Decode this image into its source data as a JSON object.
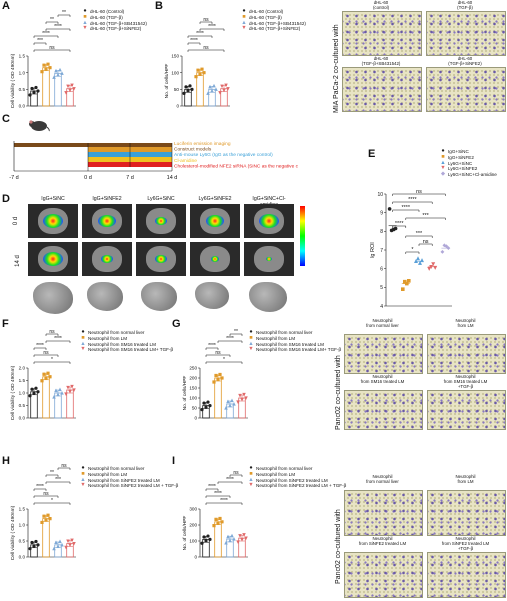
{
  "panels": {
    "A": {
      "label": "A",
      "ylabel": "Cell viability ( OD 490nm)",
      "yticks": [
        "0.0",
        "0.5",
        "1.0",
        "1.5"
      ],
      "ylim": [
        0,
        1.5
      ],
      "legend": [
        {
          "symbol": "●",
          "color": "#222222",
          "text": "dHL-60 (Control)"
        },
        {
          "symbol": "■",
          "color": "#e09a2a",
          "text": "dHL-60 (TGF-β)"
        },
        {
          "symbol": "▲",
          "color": "#7fa9d6",
          "text": "dHL-60 (TGF-β+SB431542)"
        },
        {
          "symbol": "▼",
          "color": "#e06a6a",
          "text": "dHL-60 (TGF-β+SiNFE2)"
        }
      ],
      "sig": [
        "ns",
        "***",
        "****",
        "****",
        "**",
        "**"
      ]
    },
    "B": {
      "label": "B",
      "ylabel": "No. of cells/HPF",
      "yticks": [
        "0",
        "50",
        "100",
        "150"
      ],
      "ylim": [
        0,
        150
      ],
      "legend": [
        {
          "symbol": "●",
          "color": "#222222",
          "text": "dHL-60 (Control)"
        },
        {
          "symbol": "■",
          "color": "#e09a2a",
          "text": "dHL-60 (TGF-β)"
        },
        {
          "symbol": "▲",
          "color": "#7fa9d6",
          "text": "dHL-60 (TGF-β+SB431542)"
        },
        {
          "symbol": "▼",
          "color": "#e06a6a",
          "text": "dHL-60 (TGF-β+SiNFE2)"
        }
      ],
      "sig": [
        "ns",
        "****",
        "****",
        "****",
        "ns"
      ],
      "micro": {
        "side_label": "MIA PaCa-2 co-cultured with",
        "captions": [
          "dHL-60\n(control)",
          "dHL-60\n(TGF-β)",
          "dHL-60\n(TGF-β+SB431542)",
          "dHL-60\n(TGF-β+SiNFE2)"
        ]
      }
    },
    "C": {
      "label": "C",
      "ticks": [
        "-7 d",
        "0 d",
        "7 d",
        "14 d"
      ],
      "lines": [
        {
          "text": "Luciferin emission imaging",
          "color": "#e09a2a"
        },
        {
          "text": "Construct models",
          "color": "#7a4a1a"
        },
        {
          "text": "Anti-mouse Ly6G (IgG as the negative control)",
          "color": "#3aa0d8"
        },
        {
          "text": "Cl-amidine",
          "color": "#f0c020"
        },
        {
          "text": "Cholesterol-modified NFE2 siRNA (SiNC as the negative control)",
          "color": "#e02020"
        }
      ]
    },
    "D": {
      "label": "D",
      "groups": [
        "IgG+SiNC",
        "IgG+SiNFE2",
        "Ly6G+SiNC",
        "Ly6G+SiNFE2",
        "IgG+SiNC+Cl-amidine"
      ],
      "rows": [
        "0 d",
        "14 d"
      ],
      "scale": [
        "x10^6"
      ]
    },
    "E": {
      "label": "E",
      "ylabel": "lg ROI",
      "yticks": [
        "4",
        "5",
        "6",
        "7",
        "8",
        "9",
        "10"
      ],
      "ylim": [
        4,
        10
      ],
      "legend": [
        {
          "symbol": "●",
          "color": "#222222",
          "text": "IgG+SiNC"
        },
        {
          "symbol": "■",
          "color": "#e09a2a",
          "text": "IgG+SiNFE2"
        },
        {
          "symbol": "▲",
          "color": "#5aa0d8",
          "text": "Ly6G+SiNC"
        },
        {
          "symbol": "▼",
          "color": "#e06a6a",
          "text": "Ly6G+SiNFE2"
        },
        {
          "symbol": "◆",
          "color": "#b0a8d8",
          "text": "Ly6G+SiNC+Cl-amidine"
        }
      ],
      "sig": [
        "ns",
        "****",
        "****",
        "***",
        "****",
        "***",
        "*",
        "ns"
      ]
    },
    "F": {
      "label": "F",
      "ylabel": "Cell viability ( OD 490nm)",
      "yticks": [
        "0.0",
        "0.5",
        "1.0",
        "1.5",
        "2.0"
      ],
      "ylim": [
        0,
        2.0
      ],
      "legend": [
        {
          "symbol": "●",
          "color": "#222222",
          "text": "Neutrophil from normal liver"
        },
        {
          "symbol": "■",
          "color": "#e09a2a",
          "text": "Neutrophil from LM"
        },
        {
          "symbol": "▲",
          "color": "#7fa9d6",
          "text": "Neutrophil from SM16 treated LM"
        },
        {
          "symbol": "▼",
          "color": "#e06a6a",
          "text": "Neutrophil from SM16 treated LM+ TGF-β"
        }
      ],
      "sig": [
        "*",
        "ns",
        "****",
        "****",
        "ns"
      ]
    },
    "G": {
      "label": "G",
      "ylabel": "No. of cells/HPF",
      "yticks": [
        "0",
        "50",
        "100",
        "150",
        "200",
        "250"
      ],
      "ylim": [
        0,
        250
      ],
      "legend": [
        {
          "symbol": "●",
          "color": "#222222",
          "text": "Neutrophil from normal liver"
        },
        {
          "symbol": "■",
          "color": "#e09a2a",
          "text": "Neutrophil from LM"
        },
        {
          "symbol": "▲",
          "color": "#7fa9d6",
          "text": "Neutrophil from SM16 treated LM"
        },
        {
          "symbol": "▼",
          "color": "#e06a6a",
          "text": "Neutrophil from SM16 treated LM+ TGF-β"
        }
      ],
      "sig": [
        "*",
        "ns",
        "****",
        "****",
        "**"
      ],
      "micro": {
        "side_label": "Panc02 co-cultured with",
        "captions": [
          "Neutrophil\nfrom normal liver",
          "Neutrophil\nfrom LM",
          "Neutrophil\nfrom SM16 treated LM",
          "Neutrophil\nfrom SM16 treated LM\n+TGF-β"
        ]
      }
    },
    "H": {
      "label": "H",
      "ylabel": "Cell viability ( OD 490nm)",
      "yticks": [
        "0.0",
        "0.5",
        "1.0",
        "1.5"
      ],
      "ylim": [
        0,
        1.5
      ],
      "legend": [
        {
          "symbol": "●",
          "color": "#222222",
          "text": "Neutrophil from normal liver"
        },
        {
          "symbol": "■",
          "color": "#e09a2a",
          "text": "Neutrophil from LM"
        },
        {
          "symbol": "▲",
          "color": "#7fa9d6",
          "text": "Neutrophil from SiNFE2 treated LM"
        },
        {
          "symbol": "▼",
          "color": "#e06a6a",
          "text": "Neutrophil from SiNFE2 treated LM + TGF-β"
        }
      ],
      "sig": [
        "*",
        "ns",
        "****",
        "***",
        "**",
        "ns"
      ]
    },
    "I": {
      "label": "I",
      "ylabel": "No. of cells/HPF",
      "yticks": [
        "0",
        "100",
        "200",
        "300"
      ],
      "ylim": [
        0,
        300
      ],
      "legend": [
        {
          "symbol": "●",
          "color": "#222222",
          "text": "Neutrophil from normal liver"
        },
        {
          "symbol": "■",
          "color": "#e09a2a",
          "text": "Neutrophil from LM"
        },
        {
          "symbol": "▲",
          "color": "#7fa9d6",
          "text": "Neutrophil from SiNFE2 treated LM"
        },
        {
          "symbol": "▼",
          "color": "#e06a6a",
          "text": "Neutrophil from SiNFE2 treated LM + TGF-β"
        }
      ],
      "sig": [
        "****",
        "****",
        "****",
        "****",
        "ns"
      ],
      "micro": {
        "side_label": "Panc02 co-cultured with",
        "captions": [
          "Neutrophil\nfrom normal liver",
          "Neutrophil\nfrom LM",
          "Neutrophil\nfrom SiNFE2 treated LM",
          "Neutrophil\nfrom SiNFE2 treated LM\n+TGF-β"
        ]
      }
    }
  },
  "chart_data": [
    {
      "panel": "A",
      "type": "bar",
      "categories": [
        "Control",
        "TGF-β",
        "TGF-β+SB431542",
        "TGF-β+SiNFE2"
      ],
      "values": [
        0.45,
        1.15,
        0.98,
        0.52
      ],
      "ylim": [
        0,
        1.5
      ]
    },
    {
      "panel": "B",
      "type": "bar",
      "categories": [
        "Control",
        "TGF-β",
        "TGF-β+SB431542",
        "TGF-β+SiNFE2"
      ],
      "values": [
        50,
        100,
        50,
        52
      ],
      "ylim": [
        0,
        150
      ]
    },
    {
      "panel": "E",
      "type": "scatter",
      "categories": [
        "IgG+SiNC",
        "IgG+SiNFE2",
        "Ly6G+SiNC",
        "Ly6G+SiNFE2",
        "Ly6G+SiNC+Cl-amidine"
      ],
      "values": [
        8.3,
        5.2,
        6.4,
        6.1,
        7.1
      ],
      "ylim": [
        4,
        10
      ]
    },
    {
      "panel": "F",
      "type": "bar",
      "categories": [
        "normal liver",
        "LM",
        "SM16 treated LM",
        "SM16 treated LM+TGF-β"
      ],
      "values": [
        1.05,
        1.65,
        1.0,
        1.12
      ],
      "ylim": [
        0,
        2.0
      ]
    },
    {
      "panel": "G",
      "type": "bar",
      "categories": [
        "normal liver",
        "LM",
        "SM16 treated LM",
        "SM16 treated LM+TGF-β"
      ],
      "values": [
        62,
        200,
        70,
        100
      ],
      "ylim": [
        0,
        250
      ]
    },
    {
      "panel": "H",
      "type": "bar",
      "categories": [
        "normal liver",
        "LM",
        "SiNFE2 treated LM",
        "SiNFE2 treated LM+TGF-β"
      ],
      "values": [
        0.38,
        1.2,
        0.38,
        0.42
      ],
      "ylim": [
        0,
        1.5
      ]
    },
    {
      "panel": "I",
      "type": "bar",
      "categories": [
        "normal liver",
        "LM",
        "SiNFE2 treated LM",
        "SiNFE2 treated LM+TGF-β"
      ],
      "values": [
        110,
        220,
        112,
        118
      ],
      "ylim": [
        0,
        300
      ]
    }
  ],
  "colors": {
    "black": "#222222",
    "orange": "#e09a2a",
    "blue": "#7fa9d6",
    "red": "#e06a6a"
  }
}
